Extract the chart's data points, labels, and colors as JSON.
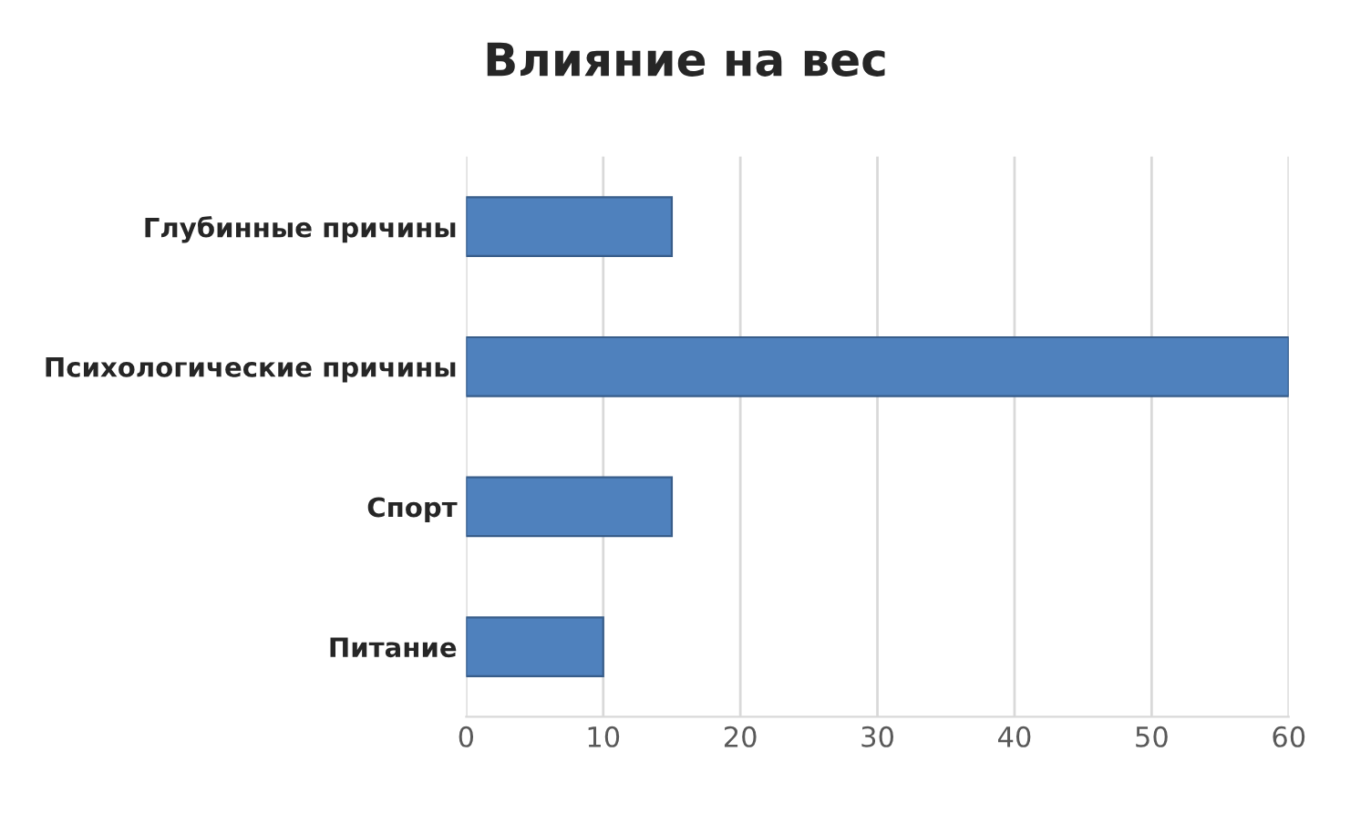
{
  "chart_data": {
    "type": "bar",
    "orientation": "horizontal",
    "title": "Влияние на вес",
    "categories": [
      "Глубинные причины",
      "Психологические причины",
      "Спорт",
      "Питание"
    ],
    "values": [
      15,
      60,
      15,
      10
    ],
    "color": "#4f81bd",
    "xlim": [
      0,
      60
    ],
    "xticks": [
      0,
      10,
      20,
      30,
      40,
      50,
      60
    ],
    "grid": "x"
  }
}
